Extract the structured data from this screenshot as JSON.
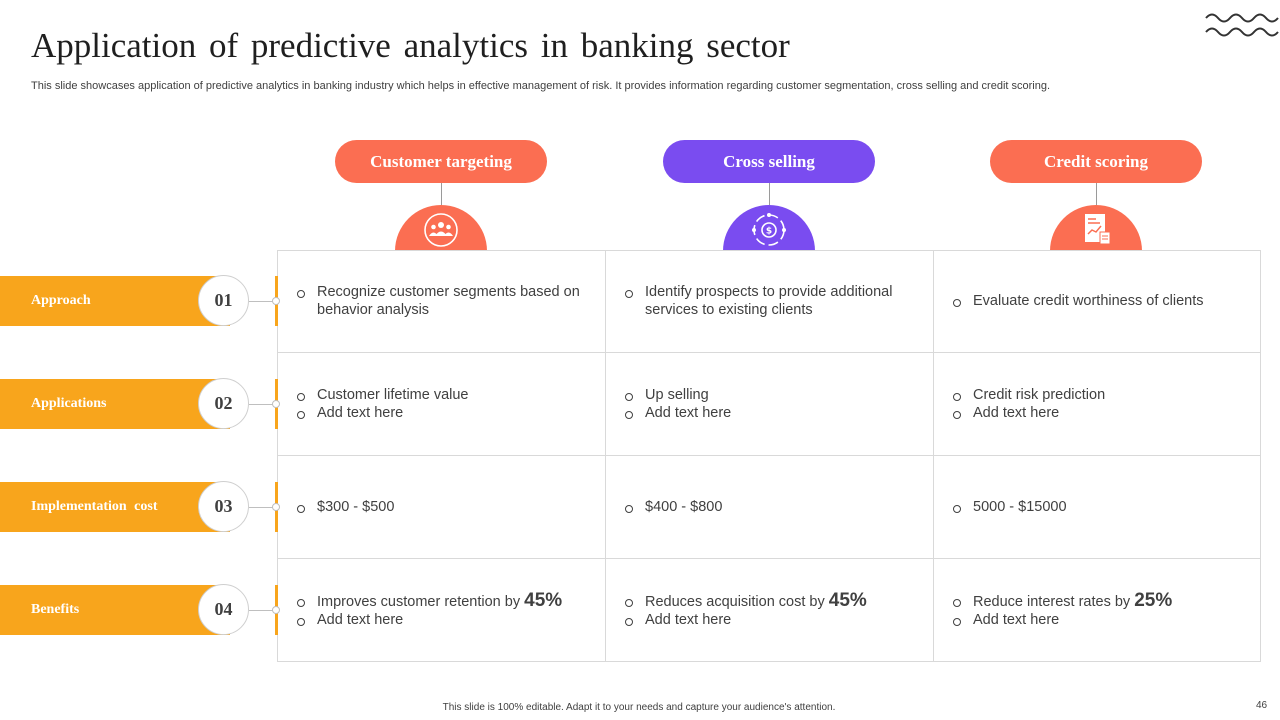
{
  "title": "Application of predictive analytics in banking sector",
  "subtitle": "This slide showcases application of predictive analytics in banking industry which helps in effective management of risk. It provides information regarding customer segmentation, cross selling and credit scoring.",
  "colors": {
    "orange_tab": "#f8a51c",
    "coral": "#fb6e52",
    "purple": "#7a4cf0"
  },
  "columns": [
    {
      "label": "Customer targeting",
      "icon": "customer-group-icon"
    },
    {
      "label": "Cross selling",
      "icon": "cross-selling-icon"
    },
    {
      "label": "Credit scoring",
      "icon": "credit-report-icon"
    }
  ],
  "rows": [
    {
      "label": "Approach",
      "number": "01"
    },
    {
      "label": "Applications",
      "number": "02"
    },
    {
      "label": "Implementation  cost",
      "number": "03"
    },
    {
      "label": "Benefits",
      "number": "04"
    }
  ],
  "cells": [
    [
      [
        {
          "text": "Recognize customer segments based on behavior analysis"
        }
      ],
      [
        {
          "text": "Identify prospects to provide additional services to existing clients"
        }
      ],
      [
        {
          "text": "Evaluate credit worthiness of clients"
        }
      ]
    ],
    [
      [
        {
          "text": "Customer lifetime value"
        },
        {
          "text": "Add text here"
        }
      ],
      [
        {
          "text": "Up selling"
        },
        {
          "text": "Add text here"
        }
      ],
      [
        {
          "text": "Credit risk prediction"
        },
        {
          "text": "Add text here"
        }
      ]
    ],
    [
      [
        {
          "text": "$300 - $500"
        }
      ],
      [
        {
          "text": "$400 - $800"
        }
      ],
      [
        {
          "text": "5000 - $15000"
        }
      ]
    ],
    [
      [
        {
          "text": "Improves customer retention by ",
          "big": "45%"
        },
        {
          "text": "Add text here"
        }
      ],
      [
        {
          "text": "Reduces acquisition cost by ",
          "big": "45%"
        },
        {
          "text": "Add text here"
        }
      ],
      [
        {
          "text": "Reduce interest rates by ",
          "big": "25%"
        },
        {
          "text": "Add text here"
        }
      ]
    ]
  ],
  "footer": "This slide is 100% editable. Adapt it to your needs and capture your audience's attention.",
  "page_number": "46"
}
